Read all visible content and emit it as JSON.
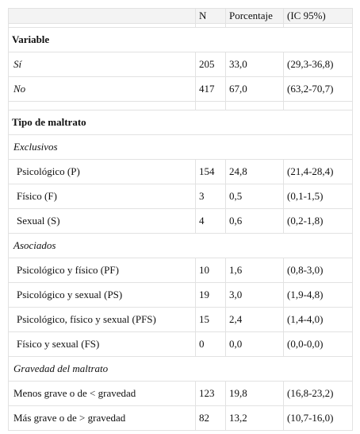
{
  "header": [
    "N",
    "Porcentaje",
    "(IC 95%)"
  ],
  "groups": [
    {
      "title": "Variable",
      "rows": [
        {
          "label": "Sí",
          "n": "205",
          "pct": "33,0",
          "ci": "(29,3-36,8)"
        },
        {
          "label": "No",
          "n": "417",
          "pct": "67,0",
          "ci": "(63,2-70,7)"
        }
      ]
    },
    {
      "title": "Tipo de maltrato",
      "subgroups": [
        {
          "title": "Exclusivos",
          "rows": [
            {
              "label": "Psicológico (P)",
              "n": "154",
              "pct": "24,8",
              "ci": "(21,4-28,4)"
            },
            {
              "label": "Físico (F)",
              "n": "3",
              "pct": "0,5",
              "ci": "(0,1-1,5)"
            },
            {
              "label": "Sexual (S)",
              "n": "4",
              "pct": "0,6",
              "ci": "(0,2-1,8)"
            }
          ]
        },
        {
          "title": "Asociados",
          "rows": [
            {
              "label": "Psicológico y físico (PF)",
              "n": "10",
              "pct": "1,6",
              "ci": "(0,8-3,0)"
            },
            {
              "label": "Psicológico y sexual (PS)",
              "n": "19",
              "pct": "3,0",
              "ci": "(1,9-4,8)"
            },
            {
              "label": "Psicológico, físico y sexual (PFS)",
              "n": "15",
              "pct": "2,4",
              "ci": "(1,4-4,0)"
            },
            {
              "label": "Físico y sexual (FS)",
              "n": "0",
              "pct": "0,0",
              "ci": "(0,0-0,0)"
            }
          ]
        },
        {
          "title": "Gravedad del maltrato",
          "rows": [
            {
              "label": "Menos grave o de < gravedad",
              "n": "123",
              "pct": "19,8",
              "ci": "(16,8-23,2)"
            },
            {
              "label": "Más grave o de > gravedad",
              "n": "82",
              "pct": "13,2",
              "ci": "(10,7-16,0)"
            }
          ]
        }
      ]
    }
  ]
}
